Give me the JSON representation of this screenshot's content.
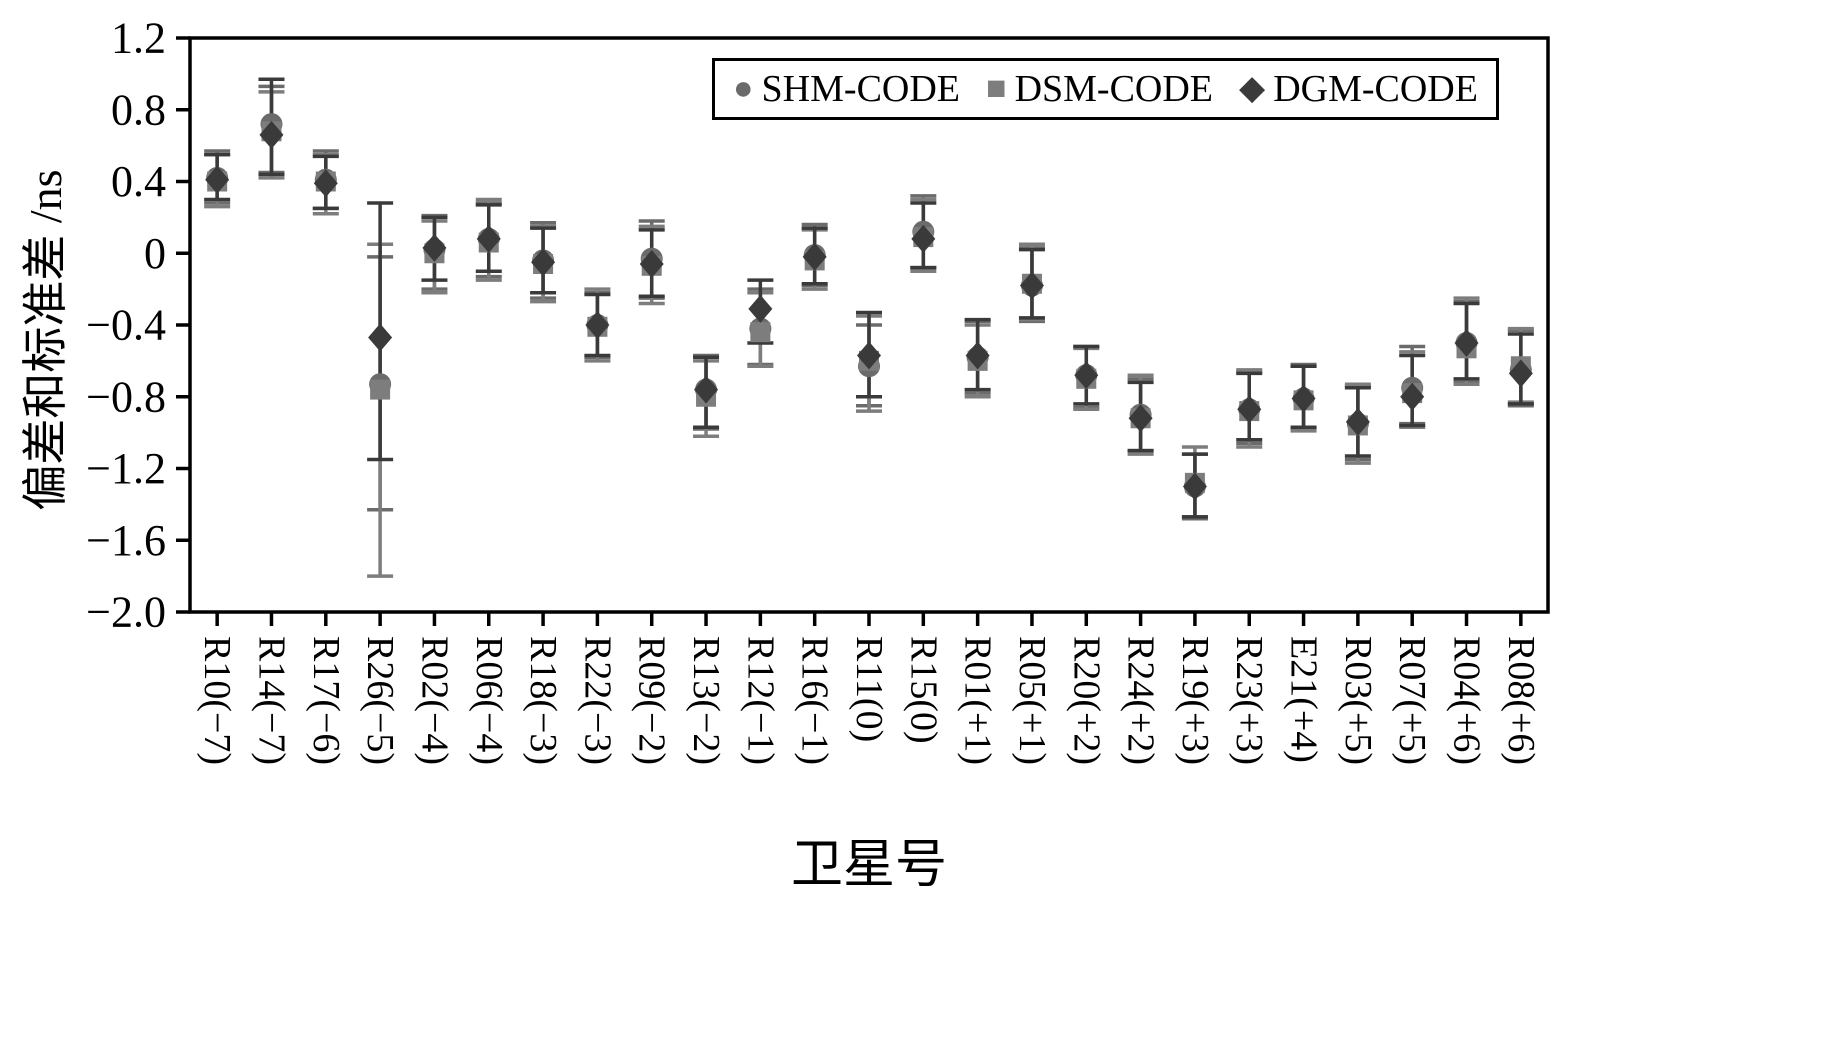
{
  "chart_data": {
    "type": "scatter",
    "title": "",
    "xlabel": "卫星号",
    "ylabel": "偏差和标准差 /ns",
    "ylim": [
      -2.0,
      1.2
    ],
    "yticks": [
      1.2,
      0.8,
      0.4,
      0.0,
      -0.4,
      -0.8,
      -1.2,
      -1.6,
      -2.0
    ],
    "grid": false,
    "legend_position": "top-right-inside",
    "categories": [
      "R10(−7)",
      "R14(−7)",
      "R17(−6)",
      "R26(−5)",
      "R02(−4)",
      "R06(−4)",
      "R18(−3)",
      "R22(−3)",
      "R09(−2)",
      "R13(−2)",
      "R12(−1)",
      "R16(−1)",
      "R11(0)",
      "R15(0)",
      "R01(+1)",
      "R05(+1)",
      "R20(+2)",
      "R24(+2)",
      "R19(+3)",
      "R23(+3)",
      "E21(+4)",
      "R03(+5)",
      "R07(+5)",
      "R04(+6)",
      "R08(+6)"
    ],
    "series": [
      {
        "name": "SHM-CODE",
        "marker": "circle",
        "color": "#6b6b6b",
        "values": [
          0.42,
          0.72,
          0.41,
          -0.73,
          0.02,
          0.08,
          -0.04,
          -0.4,
          -0.03,
          -0.76,
          -0.42,
          -0.01,
          -0.63,
          0.12,
          -0.58,
          -0.18,
          -0.68,
          -0.9,
          -1.3,
          -0.87,
          -0.81,
          -0.95,
          -0.75,
          -0.5,
          -0.65
        ],
        "ymin": [
          0.28,
          0.45,
          0.25,
          -1.43,
          -0.2,
          -0.13,
          -0.25,
          -0.58,
          -0.25,
          -0.98,
          -0.62,
          -0.18,
          -0.85,
          -0.08,
          -0.78,
          -0.38,
          -0.86,
          -1.1,
          -1.48,
          -1.06,
          -0.98,
          -1.15,
          -0.95,
          -0.72,
          -0.85
        ],
        "ymax": [
          0.57,
          0.93,
          0.57,
          -0.02,
          0.21,
          0.28,
          0.17,
          -0.22,
          0.18,
          -0.57,
          -0.2,
          0.16,
          -0.4,
          0.32,
          -0.38,
          0.03,
          -0.52,
          -0.7,
          -1.12,
          -0.66,
          -0.62,
          -0.74,
          -0.52,
          -0.27,
          -0.43
        ]
      },
      {
        "name": "DSM-CODE",
        "marker": "square",
        "color": "#7d7d7d",
        "values": [
          0.4,
          0.68,
          0.4,
          -0.76,
          0.0,
          0.06,
          -0.06,
          -0.41,
          -0.07,
          -0.8,
          -0.44,
          -0.04,
          -0.6,
          0.09,
          -0.6,
          -0.17,
          -0.7,
          -0.92,
          -1.28,
          -0.88,
          -0.82,
          -0.96,
          -0.78,
          -0.53,
          -0.63
        ],
        "ymin": [
          0.26,
          0.42,
          0.22,
          -1.8,
          -0.22,
          -0.15,
          -0.27,
          -0.6,
          -0.28,
          -1.02,
          -0.63,
          -0.2,
          -0.88,
          -0.1,
          -0.8,
          -0.37,
          -0.87,
          -1.12,
          -1.47,
          -1.08,
          -0.99,
          -1.17,
          -0.97,
          -0.73,
          -0.83
        ],
        "ymax": [
          0.55,
          0.9,
          0.55,
          0.05,
          0.18,
          0.3,
          0.15,
          -0.2,
          0.15,
          -0.6,
          -0.22,
          0.13,
          -0.35,
          0.3,
          -0.4,
          0.05,
          -0.53,
          -0.68,
          -1.08,
          -0.65,
          -0.63,
          -0.73,
          -0.55,
          -0.25,
          -0.42
        ]
      },
      {
        "name": "DGM-CODE",
        "marker": "diamond",
        "color": "#3a3a3a",
        "values": [
          0.41,
          0.66,
          0.39,
          -0.47,
          0.03,
          0.08,
          -0.05,
          -0.4,
          -0.06,
          -0.76,
          -0.31,
          -0.02,
          -0.57,
          0.08,
          -0.57,
          -0.18,
          -0.68,
          -0.92,
          -1.3,
          -0.87,
          -0.81,
          -0.94,
          -0.8,
          -0.5,
          -0.67
        ],
        "ymin": [
          0.3,
          0.44,
          0.25,
          -1.15,
          -0.15,
          -0.1,
          -0.22,
          -0.57,
          -0.24,
          -0.97,
          -0.5,
          -0.17,
          -0.8,
          -0.08,
          -0.76,
          -0.36,
          -0.84,
          -1.1,
          -1.47,
          -1.04,
          -0.97,
          -1.13,
          -0.96,
          -0.7,
          -0.84
        ],
        "ymax": [
          0.55,
          0.97,
          0.54,
          0.28,
          0.2,
          0.27,
          0.14,
          -0.23,
          0.13,
          -0.58,
          -0.15,
          0.14,
          -0.33,
          0.28,
          -0.37,
          0.02,
          -0.52,
          -0.72,
          -1.12,
          -0.67,
          -0.63,
          -0.75,
          -0.57,
          -0.28,
          -0.45
        ]
      }
    ]
  }
}
